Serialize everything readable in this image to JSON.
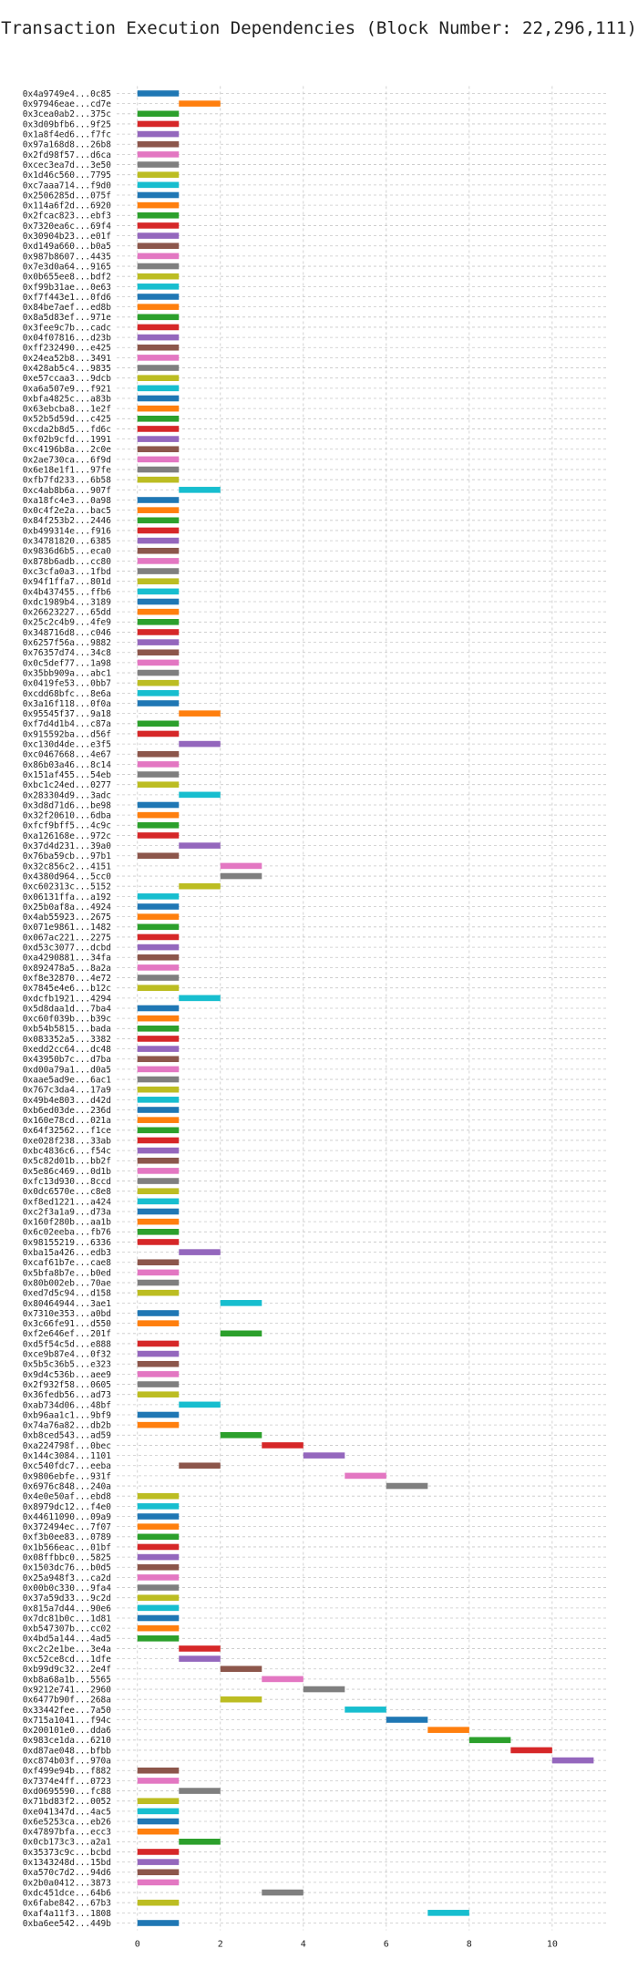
{
  "chart_data": {
    "type": "bar",
    "orientation": "horizontal",
    "title": "Transaction Execution Dependencies (Block Number: 22,296,111)",
    "xlabel": "",
    "ylabel": "",
    "xlim": [
      -0.5,
      11.3
    ],
    "xticks": [
      0,
      2,
      4,
      6,
      8,
      10
    ],
    "grid": true,
    "color_cycle": [
      "#1f77b4",
      "#ff7f0e",
      "#2ca02c",
      "#d62728",
      "#9467bd",
      "#8c564b",
      "#e377c2",
      "#7f7f7f",
      "#bcbd22",
      "#17becf"
    ],
    "transactions": [
      {
        "label": "0x4a9749e4...0c85",
        "start": 0,
        "end": 1
      },
      {
        "label": "0x97946eae...cd7e",
        "start": 1,
        "end": 2
      },
      {
        "label": "0x3cea0ab2...375c",
        "start": 0,
        "end": 1
      },
      {
        "label": "0x3d09bfb6...9f25",
        "start": 0,
        "end": 1
      },
      {
        "label": "0x1a8f4ed6...f7fc",
        "start": 0,
        "end": 1
      },
      {
        "label": "0x97a168d8...26b8",
        "start": 0,
        "end": 1
      },
      {
        "label": "0x2fd98f57...d6ca",
        "start": 0,
        "end": 1
      },
      {
        "label": "0xcec3ea7d...3e50",
        "start": 0,
        "end": 1
      },
      {
        "label": "0x1d46c560...7795",
        "start": 0,
        "end": 1
      },
      {
        "label": "0xc7aaa714...f9d0",
        "start": 0,
        "end": 1
      },
      {
        "label": "0x2506285d...075f",
        "start": 0,
        "end": 1
      },
      {
        "label": "0x114a6f2d...6920",
        "start": 0,
        "end": 1
      },
      {
        "label": "0x2fcac823...ebf3",
        "start": 0,
        "end": 1
      },
      {
        "label": "0x7320ea6c...69f4",
        "start": 0,
        "end": 1
      },
      {
        "label": "0x30904b23...e01f",
        "start": 0,
        "end": 1
      },
      {
        "label": "0xd149a660...b0a5",
        "start": 0,
        "end": 1
      },
      {
        "label": "0x987b8607...4435",
        "start": 0,
        "end": 1
      },
      {
        "label": "0x7e3d0a64...9165",
        "start": 0,
        "end": 1
      },
      {
        "label": "0x0b655ee8...bdf2",
        "start": 0,
        "end": 1
      },
      {
        "label": "0xf99b31ae...0e63",
        "start": 0,
        "end": 1
      },
      {
        "label": "0xf7f443e1...0fd6",
        "start": 0,
        "end": 1
      },
      {
        "label": "0x84be7aef...ed8b",
        "start": 0,
        "end": 1
      },
      {
        "label": "0x8a5d83ef...971e",
        "start": 0,
        "end": 1
      },
      {
        "label": "0x3fee9c7b...cadc",
        "start": 0,
        "end": 1
      },
      {
        "label": "0x04f07816...d23b",
        "start": 0,
        "end": 1
      },
      {
        "label": "0xff232490...e425",
        "start": 0,
        "end": 1
      },
      {
        "label": "0x24ea52b8...3491",
        "start": 0,
        "end": 1
      },
      {
        "label": "0x428ab5c4...9835",
        "start": 0,
        "end": 1
      },
      {
        "label": "0xe57ccaa3...9dcb",
        "start": 0,
        "end": 1
      },
      {
        "label": "0xa6a507e9...f921",
        "start": 0,
        "end": 1
      },
      {
        "label": "0xbfa4825c...a83b",
        "start": 0,
        "end": 1
      },
      {
        "label": "0x63ebcba8...1e2f",
        "start": 0,
        "end": 1
      },
      {
        "label": "0x52b5d59d...c425",
        "start": 0,
        "end": 1
      },
      {
        "label": "0xcda2b8d5...fd6c",
        "start": 0,
        "end": 1
      },
      {
        "label": "0xf02b9cfd...1991",
        "start": 0,
        "end": 1
      },
      {
        "label": "0xc4196b8a...2c0e",
        "start": 0,
        "end": 1
      },
      {
        "label": "0x2ae730ca...6f9d",
        "start": 0,
        "end": 1
      },
      {
        "label": "0x6e18e1f1...97fe",
        "start": 0,
        "end": 1
      },
      {
        "label": "0xfb7fd233...6b58",
        "start": 0,
        "end": 1
      },
      {
        "label": "0xc4ab8b6a...907f",
        "start": 1,
        "end": 2
      },
      {
        "label": "0xa18fc4e3...0a98",
        "start": 0,
        "end": 1
      },
      {
        "label": "0x0c4f2e2a...bac5",
        "start": 0,
        "end": 1
      },
      {
        "label": "0x84f253b2...2446",
        "start": 0,
        "end": 1
      },
      {
        "label": "0xb499314e...f916",
        "start": 0,
        "end": 1
      },
      {
        "label": "0x34781820...6385",
        "start": 0,
        "end": 1
      },
      {
        "label": "0x9836d6b5...eca0",
        "start": 0,
        "end": 1
      },
      {
        "label": "0x878b6adb...cc80",
        "start": 0,
        "end": 1
      },
      {
        "label": "0xc3cfa0a3...1fbd",
        "start": 0,
        "end": 1
      },
      {
        "label": "0x94f1ffa7...801d",
        "start": 0,
        "end": 1
      },
      {
        "label": "0x4b437455...ffb6",
        "start": 0,
        "end": 1
      },
      {
        "label": "0xdc1989b4...3189",
        "start": 0,
        "end": 1
      },
      {
        "label": "0x26623227...65dd",
        "start": 0,
        "end": 1
      },
      {
        "label": "0x25c2c4b9...4fe9",
        "start": 0,
        "end": 1
      },
      {
        "label": "0x348716d8...c046",
        "start": 0,
        "end": 1
      },
      {
        "label": "0x6257f56a...9882",
        "start": 0,
        "end": 1
      },
      {
        "label": "0x76357d74...34c8",
        "start": 0,
        "end": 1
      },
      {
        "label": "0x0c5def77...1a98",
        "start": 0,
        "end": 1
      },
      {
        "label": "0x35bb909a...abc1",
        "start": 0,
        "end": 1
      },
      {
        "label": "0x0419fe53...0bb7",
        "start": 0,
        "end": 1
      },
      {
        "label": "0xcdd68bfc...8e6a",
        "start": 0,
        "end": 1
      },
      {
        "label": "0x3a16f118...0f0a",
        "start": 0,
        "end": 1
      },
      {
        "label": "0x95545f37...9a18",
        "start": 1,
        "end": 2
      },
      {
        "label": "0xf7d4d1b4...c87a",
        "start": 0,
        "end": 1
      },
      {
        "label": "0x915592ba...d56f",
        "start": 0,
        "end": 1
      },
      {
        "label": "0xc130d4de...e3f5",
        "start": 1,
        "end": 2
      },
      {
        "label": "0xc0467668...4e67",
        "start": 0,
        "end": 1
      },
      {
        "label": "0x86b03a46...8c14",
        "start": 0,
        "end": 1
      },
      {
        "label": "0x151af455...54eb",
        "start": 0,
        "end": 1
      },
      {
        "label": "0xbc1c24ed...0277",
        "start": 0,
        "end": 1
      },
      {
        "label": "0x283304d9...3adc",
        "start": 1,
        "end": 2
      },
      {
        "label": "0x3d8d71d6...be98",
        "start": 0,
        "end": 1
      },
      {
        "label": "0x32f20610...6dba",
        "start": 0,
        "end": 1
      },
      {
        "label": "0xfcf9bff5...4c9c",
        "start": 0,
        "end": 1
      },
      {
        "label": "0xa126168e...972c",
        "start": 0,
        "end": 1
      },
      {
        "label": "0x37d4d231...39a0",
        "start": 1,
        "end": 2
      },
      {
        "label": "0x76ba59cb...97b1",
        "start": 0,
        "end": 1
      },
      {
        "label": "0x32c856c2...4151",
        "start": 2,
        "end": 3
      },
      {
        "label": "0x4380d964...5cc0",
        "start": 2,
        "end": 3
      },
      {
        "label": "0xc602313c...5152",
        "start": 1,
        "end": 2
      },
      {
        "label": "0x06131ffa...a192",
        "start": 0,
        "end": 1
      },
      {
        "label": "0x25b0af8a...4924",
        "start": 0,
        "end": 1
      },
      {
        "label": "0x4ab55923...2675",
        "start": 0,
        "end": 1
      },
      {
        "label": "0x071e9861...1482",
        "start": 0,
        "end": 1
      },
      {
        "label": "0x067ac221...2275",
        "start": 0,
        "end": 1
      },
      {
        "label": "0xd53c3077...dcbd",
        "start": 0,
        "end": 1
      },
      {
        "label": "0xa4290881...34fa",
        "start": 0,
        "end": 1
      },
      {
        "label": "0x892478a5...8a2a",
        "start": 0,
        "end": 1
      },
      {
        "label": "0xf8e32870...4e72",
        "start": 0,
        "end": 1
      },
      {
        "label": "0x7845e4e6...b12c",
        "start": 0,
        "end": 1
      },
      {
        "label": "0xdcfb1921...4294",
        "start": 1,
        "end": 2
      },
      {
        "label": "0x5d8daa1d...7ba4",
        "start": 0,
        "end": 1
      },
      {
        "label": "0xc60f039b...b39c",
        "start": 0,
        "end": 1
      },
      {
        "label": "0xb54b5815...bada",
        "start": 0,
        "end": 1
      },
      {
        "label": "0x083352a5...3382",
        "start": 0,
        "end": 1
      },
      {
        "label": "0xedd2cc64...dc48",
        "start": 0,
        "end": 1
      },
      {
        "label": "0x43950b7c...d7ba",
        "start": 0,
        "end": 1
      },
      {
        "label": "0xd00a79a1...d0a5",
        "start": 0,
        "end": 1
      },
      {
        "label": "0xaae5ad9e...6ac1",
        "start": 0,
        "end": 1
      },
      {
        "label": "0x767c3da4...17a9",
        "start": 0,
        "end": 1
      },
      {
        "label": "0x49b4e803...d42d",
        "start": 0,
        "end": 1
      },
      {
        "label": "0xb6ed03de...236d",
        "start": 0,
        "end": 1
      },
      {
        "label": "0x160e78cd...021a",
        "start": 0,
        "end": 1
      },
      {
        "label": "0x64f32562...f1ce",
        "start": 0,
        "end": 1
      },
      {
        "label": "0xe028f238...33ab",
        "start": 0,
        "end": 1
      },
      {
        "label": "0xbc4836c6...f54c",
        "start": 0,
        "end": 1
      },
      {
        "label": "0x5c82d01b...bb2f",
        "start": 0,
        "end": 1
      },
      {
        "label": "0x5e86c469...0d1b",
        "start": 0,
        "end": 1
      },
      {
        "label": "0xfc13d930...8ccd",
        "start": 0,
        "end": 1
      },
      {
        "label": "0x0dc6570e...c8e8",
        "start": 0,
        "end": 1
      },
      {
        "label": "0xf8ed1221...a424",
        "start": 0,
        "end": 1
      },
      {
        "label": "0xc2f3a1a9...d73a",
        "start": 0,
        "end": 1
      },
      {
        "label": "0x160f280b...aa1b",
        "start": 0,
        "end": 1
      },
      {
        "label": "0x6c02eeba...fb76",
        "start": 0,
        "end": 1
      },
      {
        "label": "0x98155219...6336",
        "start": 0,
        "end": 1
      },
      {
        "label": "0xba15a426...edb3",
        "start": 1,
        "end": 2
      },
      {
        "label": "0xcaf61b7e...cae8",
        "start": 0,
        "end": 1
      },
      {
        "label": "0x5bfa8b7e...b0ed",
        "start": 0,
        "end": 1
      },
      {
        "label": "0x80b002eb...70ae",
        "start": 0,
        "end": 1
      },
      {
        "label": "0xed7d5c94...d158",
        "start": 0,
        "end": 1
      },
      {
        "label": "0x80464944...3ae1",
        "start": 2,
        "end": 3
      },
      {
        "label": "0x7310e353...a0bd",
        "start": 0,
        "end": 1
      },
      {
        "label": "0x3c66fe91...d550",
        "start": 0,
        "end": 1
      },
      {
        "label": "0xf2e646ef...201f",
        "start": 2,
        "end": 3
      },
      {
        "label": "0xd5f54c5d...e888",
        "start": 0,
        "end": 1
      },
      {
        "label": "0xce9b87e4...0f32",
        "start": 0,
        "end": 1
      },
      {
        "label": "0x5b5c36b5...e323",
        "start": 0,
        "end": 1
      },
      {
        "label": "0x9d4c536b...aee9",
        "start": 0,
        "end": 1
      },
      {
        "label": "0x2f932f58...0605",
        "start": 0,
        "end": 1
      },
      {
        "label": "0x36fedb56...ad73",
        "start": 0,
        "end": 1
      },
      {
        "label": "0xab734d06...48bf",
        "start": 1,
        "end": 2
      },
      {
        "label": "0xb96aa1c1...9bf9",
        "start": 0,
        "end": 1
      },
      {
        "label": "0x74a76a82...db2b",
        "start": 0,
        "end": 1
      },
      {
        "label": "0xb8ced543...ad59",
        "start": 2,
        "end": 3
      },
      {
        "label": "0xa224798f...0bec",
        "start": 3,
        "end": 4
      },
      {
        "label": "0x144c3084...1101",
        "start": 4,
        "end": 5
      },
      {
        "label": "0xc540fdc7...eeba",
        "start": 1,
        "end": 2
      },
      {
        "label": "0x9806ebfe...931f",
        "start": 5,
        "end": 6
      },
      {
        "label": "0x6976c848...240a",
        "start": 6,
        "end": 7
      },
      {
        "label": "0x4e0e50af...ebd8",
        "start": 0,
        "end": 1
      },
      {
        "label": "0x8979dc12...f4e0",
        "start": 0,
        "end": 1
      },
      {
        "label": "0x44611090...09a9",
        "start": 0,
        "end": 1
      },
      {
        "label": "0x372494ec...7f07",
        "start": 0,
        "end": 1
      },
      {
        "label": "0xf3b0ee83...0789",
        "start": 0,
        "end": 1
      },
      {
        "label": "0x1b566eac...01bf",
        "start": 0,
        "end": 1
      },
      {
        "label": "0x08ffbbc0...5825",
        "start": 0,
        "end": 1
      },
      {
        "label": "0x1503dc76...b0d5",
        "start": 0,
        "end": 1
      },
      {
        "label": "0x25a948f3...ca2d",
        "start": 0,
        "end": 1
      },
      {
        "label": "0x00b0c330...9fa4",
        "start": 0,
        "end": 1
      },
      {
        "label": "0x37a59d33...9c2d",
        "start": 0,
        "end": 1
      },
      {
        "label": "0x815a7d44...90e6",
        "start": 0,
        "end": 1
      },
      {
        "label": "0x7dc81b0c...1d81",
        "start": 0,
        "end": 1
      },
      {
        "label": "0xb547307b...cc02",
        "start": 0,
        "end": 1
      },
      {
        "label": "0x4bd5a144...4ad5",
        "start": 0,
        "end": 1
      },
      {
        "label": "0xc2c2e1be...3e4a",
        "start": 1,
        "end": 2
      },
      {
        "label": "0xc52ce8cd...1dfe",
        "start": 1,
        "end": 2
      },
      {
        "label": "0xb99d9c32...2e4f",
        "start": 2,
        "end": 3
      },
      {
        "label": "0xb8a68a1b...5565",
        "start": 3,
        "end": 4
      },
      {
        "label": "0x9212e741...2960",
        "start": 4,
        "end": 5
      },
      {
        "label": "0x6477b90f...268a",
        "start": 2,
        "end": 3
      },
      {
        "label": "0x33442fee...7a50",
        "start": 5,
        "end": 6
      },
      {
        "label": "0x715a1041...f94c",
        "start": 6,
        "end": 7
      },
      {
        "label": "0x200101e0...dda6",
        "start": 7,
        "end": 8
      },
      {
        "label": "0x983ce1da...6210",
        "start": 8,
        "end": 9
      },
      {
        "label": "0xd87ae048...bfbb",
        "start": 9,
        "end": 10
      },
      {
        "label": "0xc874b03f...970a",
        "start": 10,
        "end": 11
      },
      {
        "label": "0xf499e94b...f882",
        "start": 0,
        "end": 1
      },
      {
        "label": "0x7374e4ff...0723",
        "start": 0,
        "end": 1
      },
      {
        "label": "0xd0695590...fc88",
        "start": 1,
        "end": 2
      },
      {
        "label": "0x71bd83f2...0052",
        "start": 0,
        "end": 1
      },
      {
        "label": "0xe041347d...4ac5",
        "start": 0,
        "end": 1
      },
      {
        "label": "0x6e5253ca...eb26",
        "start": 0,
        "end": 1
      },
      {
        "label": "0x47897bfa...ecc3",
        "start": 0,
        "end": 1
      },
      {
        "label": "0x0cb173c3...a2a1",
        "start": 1,
        "end": 2
      },
      {
        "label": "0x35373c9c...bcbd",
        "start": 0,
        "end": 1
      },
      {
        "label": "0x1343248d...15bd",
        "start": 0,
        "end": 1
      },
      {
        "label": "0xa570c7d2...94d6",
        "start": 0,
        "end": 1
      },
      {
        "label": "0x2b0a0412...3873",
        "start": 0,
        "end": 1
      },
      {
        "label": "0xdc451dce...64b6",
        "start": 3,
        "end": 4
      },
      {
        "label": "0x6fabe842...67b3",
        "start": 0,
        "end": 1
      },
      {
        "label": "0xaf4a11f3...1808",
        "start": 7,
        "end": 8
      },
      {
        "label": "0xba6ee542...449b",
        "start": 0,
        "end": 1
      }
    ]
  }
}
